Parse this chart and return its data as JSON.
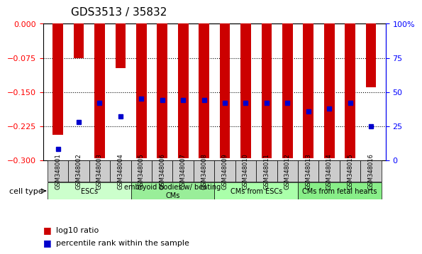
{
  "title": "GDS3513 / 35832",
  "samples": [
    "GSM348001",
    "GSM348002",
    "GSM348003",
    "GSM348004",
    "GSM348005",
    "GSM348006",
    "GSM348007",
    "GSM348008",
    "GSM348009",
    "GSM348010",
    "GSM348011",
    "GSM348012",
    "GSM348013",
    "GSM348014",
    "GSM348015",
    "GSM348016"
  ],
  "log10_ratio": [
    -0.245,
    -0.075,
    -0.295,
    -0.097,
    -0.295,
    -0.295,
    -0.295,
    -0.295,
    -0.295,
    -0.295,
    -0.295,
    -0.295,
    -0.295,
    -0.295,
    -0.295,
    -0.14
  ],
  "percentile_rank": [
    8,
    28,
    42,
    32,
    45,
    44,
    44,
    44,
    42,
    42,
    42,
    42,
    36,
    38,
    42,
    25
  ],
  "ylim_left": [
    -0.3,
    0.0
  ],
  "ylim_right": [
    0,
    100
  ],
  "yticks_left": [
    0,
    -0.075,
    -0.15,
    -0.225,
    -0.3
  ],
  "yticks_right": [
    0,
    25,
    50,
    75,
    100
  ],
  "bar_color": "#cc0000",
  "dot_color": "#0000cc",
  "cell_type_groups": [
    {
      "label": "ESCs",
      "start": 0,
      "end": 3,
      "color": "#ccffcc"
    },
    {
      "label": "embryoid bodies w/ beating\nCMs",
      "start": 4,
      "end": 7,
      "color": "#99ee99"
    },
    {
      "label": "CMs from ESCs",
      "start": 8,
      "end": 11,
      "color": "#aaffaa"
    },
    {
      "label": "CMs from fetal hearts",
      "start": 12,
      "end": 15,
      "color": "#88ee88"
    }
  ],
  "legend_items": [
    {
      "label": "log10 ratio",
      "color": "#cc0000"
    },
    {
      "label": "percentile rank within the sample",
      "color": "#0000cc"
    }
  ],
  "cell_type_label": "cell type",
  "background_color": "#ffffff",
  "bar_width": 0.5
}
